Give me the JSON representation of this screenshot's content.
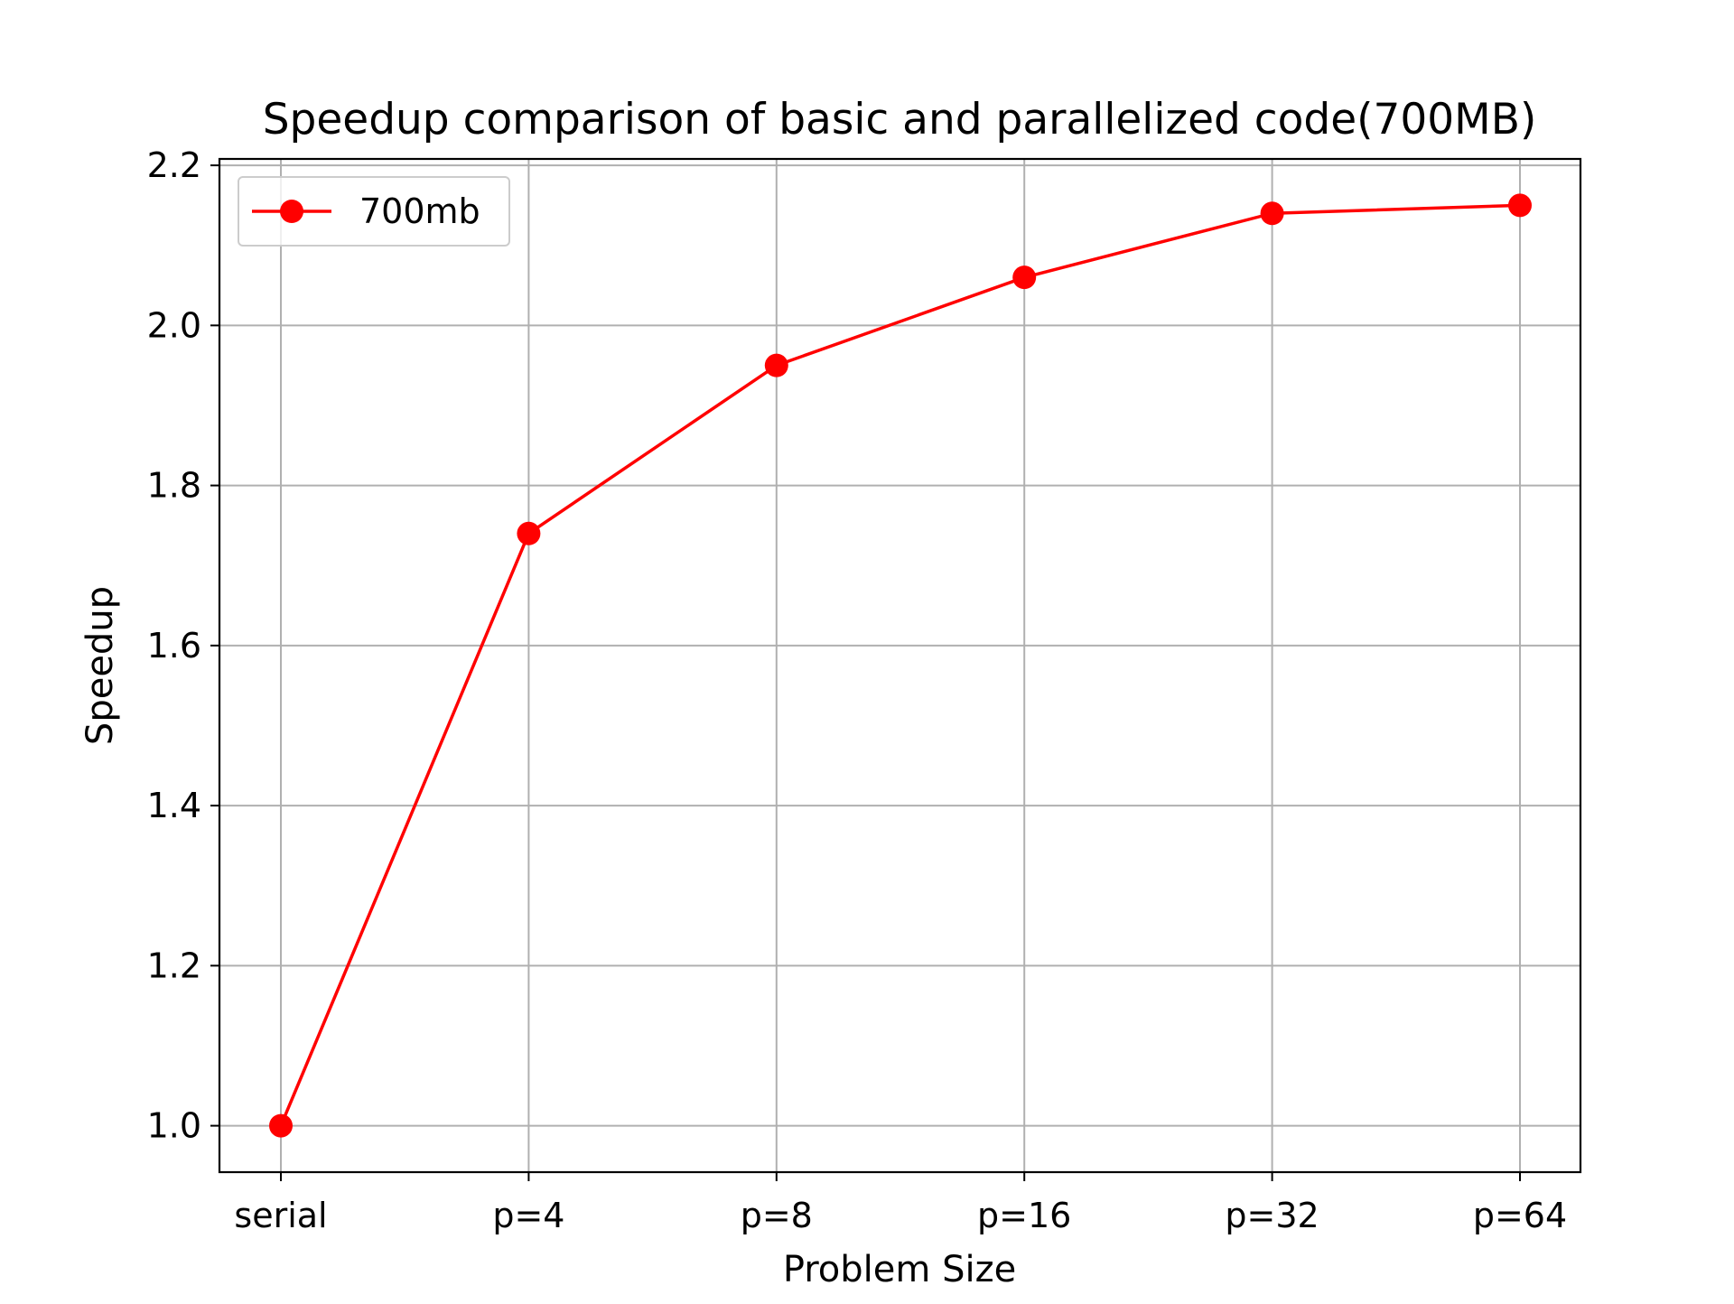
{
  "chart_data": {
    "type": "line",
    "title": "Speedup comparison of basic and parallelized code(700MB)",
    "xlabel": "Problem Size",
    "ylabel": "Speedup",
    "categories": [
      "serial",
      "p=4",
      "p=8",
      "p=16",
      "p=32",
      "p=64"
    ],
    "series": [
      {
        "name": "700mb",
        "values": [
          1.0,
          1.74,
          1.95,
          2.06,
          2.14,
          2.15
        ],
        "color": "#ff0000",
        "marker": "circle"
      }
    ],
    "ylim": [
      0.942,
      2.208
    ],
    "yticks": [
      1.0,
      1.2,
      1.4,
      1.6,
      1.8,
      2.0,
      2.2
    ],
    "ytick_labels": [
      "1.0",
      "1.2",
      "1.4",
      "1.6",
      "1.8",
      "2.0",
      "2.2"
    ],
    "grid": true,
    "grid_color": "#b0b0b0",
    "legend_position": "upper-left"
  }
}
